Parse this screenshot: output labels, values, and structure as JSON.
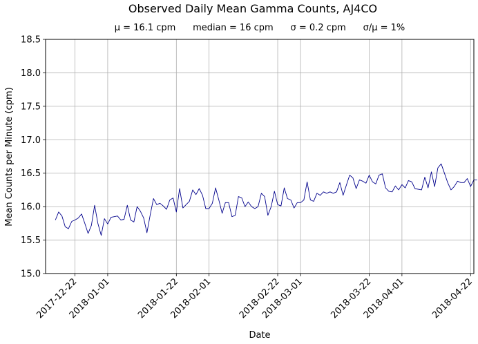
{
  "chart_data": {
    "type": "line",
    "title": "Observed Daily Mean Gamma Counts, AJ4CO",
    "subtitle": "μ = 16.1 cpm      median = 16 cpm      σ = 0.2 cpm      σ/μ = 1%",
    "xlabel": "Date",
    "ylabel": "Mean Counts per Minute (cpm)",
    "xlim": [
      "2017-12-13",
      "2018-04-23"
    ],
    "ylim": [
      15.0,
      18.5
    ],
    "grid": true,
    "line_color": "#00008b",
    "x_ticks": [
      "2017-12-22",
      "2018-01-01",
      "2018-01-22",
      "2018-02-01",
      "2018-02-22",
      "2018-03-01",
      "2018-03-22",
      "2018-04-01",
      "2018-04-22"
    ],
    "y_ticks": [
      "15.0",
      "15.5",
      "16.0",
      "16.5",
      "17.0",
      "17.5",
      "18.0",
      "18.5"
    ],
    "series": [
      {
        "x_start": "2017-12-16",
        "step_days": 1,
        "values": [
          15.8,
          15.92,
          15.86,
          15.7,
          15.67,
          15.78,
          15.8,
          15.83,
          15.89,
          15.75,
          15.6,
          15.72,
          16.02,
          15.75,
          15.57,
          15.82,
          15.74,
          15.84,
          15.85,
          15.86,
          15.8,
          15.81,
          16.02,
          15.8,
          15.77,
          16.0,
          15.93,
          15.83,
          15.61,
          15.88,
          16.12,
          16.03,
          16.05,
          16.01,
          15.96,
          16.1,
          16.13,
          15.92,
          16.27,
          15.98,
          16.03,
          16.08,
          16.25,
          16.18,
          16.27,
          16.17,
          15.97,
          15.97,
          16.05,
          16.28,
          16.1,
          15.9,
          16.06,
          16.06,
          15.85,
          15.87,
          16.15,
          16.13,
          16.0,
          16.07,
          16.0,
          15.97,
          16.0,
          16.2,
          16.15,
          15.87,
          16.0,
          16.23,
          16.03,
          16.01,
          16.28,
          16.12,
          16.1,
          15.98,
          16.06,
          16.06,
          16.1,
          16.37,
          16.1,
          16.08,
          16.2,
          16.17,
          16.22,
          16.2,
          16.22,
          16.2,
          16.22,
          16.36,
          16.17,
          16.32,
          16.47,
          16.43,
          16.27,
          16.4,
          16.38,
          16.35,
          16.47,
          16.37,
          16.34,
          16.47,
          16.49,
          16.28,
          16.23,
          16.22,
          16.31,
          16.25,
          16.33,
          16.28,
          16.39,
          16.37,
          16.27,
          16.26,
          16.25,
          16.44,
          16.28,
          16.52,
          16.3,
          16.58,
          16.64,
          16.5,
          16.36,
          16.25,
          16.3,
          16.38,
          16.36,
          16.36,
          16.42,
          16.3,
          16.4,
          16.4
        ]
      }
    ]
  }
}
